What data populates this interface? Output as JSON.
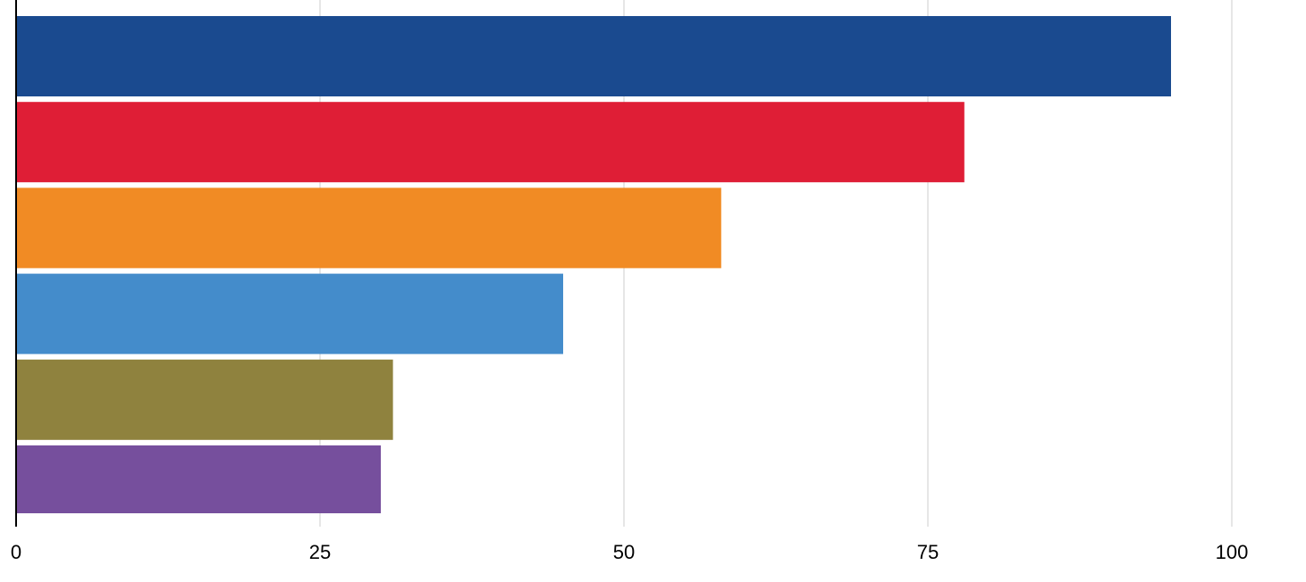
{
  "chart_data": {
    "type": "bar",
    "orientation": "horizontal",
    "title": "",
    "xlabel": "",
    "ylabel": "",
    "xlim": [
      0,
      100
    ],
    "x_ticks": [
      0,
      25,
      50,
      75,
      100
    ],
    "x_tick_labels": [
      "0",
      "25",
      "50",
      "75",
      "100"
    ],
    "grid": "vertical",
    "legend": "none",
    "bars": [
      {
        "value": 95,
        "color": "#1a4a8f"
      },
      {
        "value": 78,
        "color": "#df1e36"
      },
      {
        "value": 58,
        "color": "#f18b24"
      },
      {
        "value": 45,
        "color": "#448ccb"
      },
      {
        "value": 31,
        "color": "#8f823e"
      },
      {
        "value": 30,
        "color": "#764f9d"
      }
    ]
  }
}
